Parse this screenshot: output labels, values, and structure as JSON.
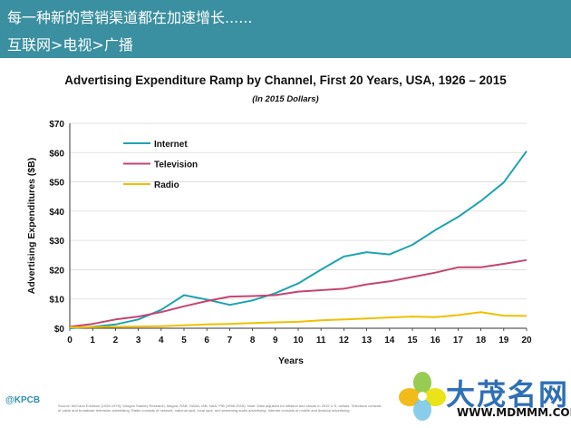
{
  "header": {
    "line1": "每一种新的营销渠道都在加速增长......",
    "line2": "互联网>电视>广播",
    "background": "#3a8fa0"
  },
  "chart_data": {
    "type": "line",
    "title": "Advertising Expenditure Ramp by Channel, First 20 Years, USA, 1926 – 2015",
    "subtitle": "(In 2015 Dollars)",
    "xlabel": "Years",
    "ylabel": "Advertising Expenditures ($B)",
    "x": [
      0,
      1,
      2,
      3,
      4,
      5,
      6,
      7,
      8,
      9,
      10,
      11,
      12,
      13,
      14,
      15,
      16,
      17,
      18,
      19,
      20
    ],
    "xlim": [
      0,
      20
    ],
    "ylim": [
      0,
      70
    ],
    "yticks": [
      0,
      10,
      20,
      30,
      40,
      50,
      60,
      70
    ],
    "ytick_labels": [
      "$0",
      "$10",
      "$20",
      "$30",
      "$40",
      "$50",
      "$60",
      "$70"
    ],
    "xtick_labels": [
      "0",
      "1",
      "2",
      "3",
      "4",
      "5",
      "6",
      "7",
      "8",
      "9",
      "10",
      "11",
      "12",
      "13",
      "14",
      "15",
      "16",
      "17",
      "18",
      "19",
      "20"
    ],
    "legend_position": "top-left",
    "series": [
      {
        "name": "Internet",
        "color": "#1fa3b0",
        "values": [
          0,
          0.5,
          1.3,
          3,
          6.3,
          11.3,
          9.8,
          8,
          9.5,
          12,
          15.3,
          20,
          24.5,
          26,
          25.2,
          28.5,
          33.5,
          38,
          43.5,
          49.8,
          60.5
        ]
      },
      {
        "name": "Television",
        "color": "#c44570",
        "values": [
          0.5,
          1.5,
          3,
          4,
          5.5,
          7.5,
          9.3,
          10.8,
          11,
          11.3,
          12.5,
          13,
          13.5,
          15,
          16,
          17.5,
          19,
          20.8,
          20.8,
          22,
          23.3
        ]
      },
      {
        "name": "Radio",
        "color": "#f0c000",
        "values": [
          0.3,
          0.4,
          0.5,
          0.6,
          0.7,
          1,
          1.3,
          1.5,
          1.8,
          2,
          2.2,
          2.7,
          3,
          3.3,
          3.7,
          4,
          3.8,
          4.5,
          5.5,
          4.3,
          4.2
        ]
      }
    ]
  },
  "footer": {
    "logo": "@KPCB",
    "source": "Source: McCann Erickson (1926-1979); Morgan Stanley Research; Magna; RAB; OAAA; IAB; NAA; PIB (1996-2015). Note: Data adjusted for inflation and shown in 2015 U.S. dollars. Television consists of cable and broadcast television advertising. Radio consists of network, national spot, local spot, and streaming audio advertising. Internet consists of mobile and desktop advertising."
  },
  "watermark": {
    "text": "大茂名网",
    "url": "WWW.MDMMM.COM"
  }
}
